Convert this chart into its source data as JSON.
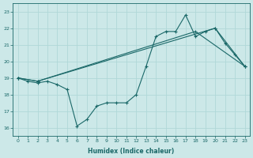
{
  "xlabel": "Humidex (Indice chaleur)",
  "bg_color": "#cce8e8",
  "grid_color": "#b0d8d8",
  "line_color": "#1a6868",
  "xlim": [
    -0.5,
    23.5
  ],
  "ylim": [
    15.5,
    23.5
  ],
  "xticks": [
    0,
    1,
    2,
    3,
    4,
    5,
    6,
    7,
    8,
    9,
    10,
    11,
    12,
    13,
    14,
    15,
    16,
    17,
    18,
    19,
    20,
    21,
    22,
    23
  ],
  "yticks": [
    16,
    17,
    18,
    19,
    20,
    21,
    22,
    23
  ],
  "line1_x": [
    0,
    1,
    2,
    3,
    4,
    5,
    6,
    7,
    8,
    9,
    10,
    11,
    12,
    13,
    14,
    15,
    16,
    17,
    18,
    19,
    20,
    21,
    22,
    23
  ],
  "line1_y": [
    19.0,
    18.8,
    18.7,
    18.8,
    18.6,
    18.3,
    16.1,
    16.5,
    17.3,
    17.5,
    17.5,
    17.5,
    18.0,
    19.7,
    21.5,
    21.8,
    21.8,
    22.8,
    21.5,
    21.8,
    22.0,
    21.1,
    20.4,
    19.7
  ],
  "line2_x": [
    0,
    2,
    20,
    23
  ],
  "line2_y": [
    19.0,
    18.8,
    22.0,
    19.7
  ],
  "line3_x": [
    0,
    2,
    18,
    23
  ],
  "line3_y": [
    19.0,
    18.8,
    21.8,
    19.7
  ]
}
